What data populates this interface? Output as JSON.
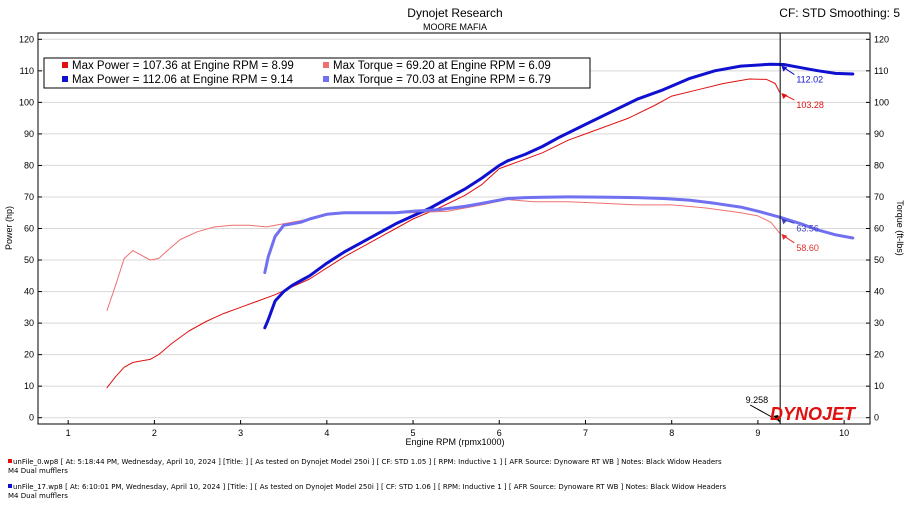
{
  "header": {
    "title": "Dynojet Research",
    "subtitle": "MOORE MAFIA",
    "correction": "CF: STD Smoothing: 5"
  },
  "logo": {
    "text": "DYNOJET"
  },
  "legend": [
    {
      "marker_color": "#e01010",
      "text": "Max Power = 107.36 at Engine RPM = 8.99"
    },
    {
      "marker_color": "#f07070",
      "text": "Max Torque = 69.20 at Engine RPM = 6.09"
    },
    {
      "marker_color": "#1010d0",
      "text": "Max Power = 112.06 at Engine RPM = 9.14"
    },
    {
      "marker_color": "#7070f0",
      "text": "Max Torque = 70.03 at Engine RPM = 6.79"
    }
  ],
  "cursor": {
    "value": 9.258,
    "label": "9.258"
  },
  "footer": [
    {
      "color": "#e01010",
      "line1": "unFile_0.wp8 [ At: 5:18:44 PM, Wednesday, April 10, 2024 ] [Title: ]  [ As tested on Dynojet Model 250i ] [ CF: STD 1.05 ] [ RPM: Inductive 1 ] [ AFR Source: Dynoware RT WB ] Notes: Black Widow Headers",
      "line2": "M4 Dual mufflers"
    },
    {
      "color": "#1010d0",
      "line1": "unFile_17.wp8 [ At: 6:10:01 PM, Wednesday, April 10, 2024 ] [Title: ]  [ As tested on Dynojet Model 250i ] [ CF: STD 1.06 ] [ RPM: Inductive 1 ] [ AFR Source: Dynoware RT WB ] Notes: Black Widow Headers",
      "line2": "M4 Dual mufflers"
    }
  ],
  "chart_data": {
    "type": "line",
    "xlabel": "Engine RPM (rpmx1000)",
    "ylabel": "Power (hp)",
    "ylabel_right": "Torque (ft-lbs)",
    "xlim": [
      0.65,
      10.3
    ],
    "ylim": [
      -2,
      122
    ],
    "x_ticks": [
      1,
      2,
      3,
      4,
      5,
      6,
      7,
      8,
      9,
      10
    ],
    "y_ticks": [
      0,
      10,
      20,
      30,
      40,
      50,
      60,
      70,
      80,
      90,
      100,
      110,
      120
    ],
    "grid": "horizontal",
    "colors": {
      "run1_power": "#e01010",
      "run1_torque": "#f07070",
      "run2_power": "#1010d0",
      "run2_torque": "#7070f0"
    },
    "series": [
      {
        "key": "run1_power",
        "width": 1,
        "x": [
          1.45,
          1.55,
          1.65,
          1.75,
          1.85,
          1.95,
          2.05,
          2.2,
          2.4,
          2.6,
          2.8,
          3.0,
          3.2,
          3.4,
          3.6,
          3.8,
          4.0,
          4.2,
          4.5,
          4.8,
          5.0,
          5.3,
          5.6,
          5.8,
          6.0,
          6.2,
          6.5,
          6.8,
          7.0,
          7.2,
          7.5,
          7.8,
          8.0,
          8.3,
          8.6,
          8.9,
          9.1,
          9.2,
          9.25
        ],
        "y": [
          9.5,
          13,
          16,
          17.5,
          18,
          18.5,
          20,
          23.5,
          27.5,
          30.5,
          33,
          35,
          37,
          39,
          41.5,
          44,
          47.5,
          51,
          55.5,
          60,
          63,
          66.5,
          70.5,
          74,
          79,
          81,
          84,
          88,
          90,
          92,
          95,
          99,
          102,
          104,
          106,
          107.4,
          107.3,
          106,
          103.3
        ]
      },
      {
        "key": "run1_torque",
        "width": 1,
        "x": [
          1.45,
          1.55,
          1.65,
          1.75,
          1.85,
          1.95,
          2.05,
          2.15,
          2.3,
          2.5,
          2.7,
          2.9,
          3.1,
          3.3,
          3.5,
          3.7,
          4.0,
          4.3,
          4.6,
          5.0,
          5.4,
          5.8,
          6.09,
          6.4,
          6.8,
          7.2,
          7.6,
          8.0,
          8.4,
          8.8,
          9.0,
          9.15,
          9.25
        ],
        "y": [
          34,
          42,
          50.5,
          53,
          51.5,
          50,
          50.5,
          53,
          56.5,
          59,
          60.5,
          61,
          61,
          60.5,
          61.5,
          62.5,
          64.5,
          65,
          65,
          65,
          65.5,
          67.5,
          69.2,
          68.5,
          68.5,
          68,
          67.5,
          67.5,
          66.5,
          65,
          64,
          62,
          58.6
        ]
      },
      {
        "key": "run2_power",
        "width": 3,
        "x": [
          3.28,
          3.32,
          3.4,
          3.5,
          3.6,
          3.7,
          3.8,
          4.0,
          4.2,
          4.4,
          4.6,
          4.8,
          5.0,
          5.2,
          5.4,
          5.6,
          5.8,
          6.0,
          6.1,
          6.3,
          6.5,
          6.7,
          7.0,
          7.3,
          7.6,
          7.9,
          8.2,
          8.5,
          8.8,
          9.14,
          9.3,
          9.5,
          9.7,
          9.9,
          10.1
        ],
        "y": [
          28.5,
          31,
          37,
          40,
          42,
          43.5,
          45,
          49,
          52.5,
          55.5,
          58.5,
          61.5,
          64,
          66.5,
          69.5,
          72.5,
          76,
          80,
          81.5,
          83.5,
          86,
          89,
          93,
          97,
          101,
          104,
          107.5,
          110,
          111.5,
          112.06,
          112,
          111,
          110,
          109.2,
          109
        ]
      },
      {
        "key": "run2_torque",
        "width": 3,
        "x": [
          3.28,
          3.32,
          3.4,
          3.5,
          3.6,
          3.7,
          3.8,
          4.0,
          4.2,
          4.5,
          4.8,
          5.0,
          5.3,
          5.6,
          5.8,
          6.0,
          6.1,
          6.3,
          6.5,
          6.79,
          7.0,
          7.3,
          7.6,
          7.9,
          8.2,
          8.5,
          8.8,
          9.0,
          9.26,
          9.5,
          9.7,
          9.9,
          10.1
        ],
        "y": [
          46,
          51,
          57.5,
          61,
          61.5,
          62,
          63,
          64.5,
          65,
          65,
          65,
          65.5,
          66,
          67,
          68,
          69,
          69.5,
          69.8,
          69.9,
          70.03,
          70,
          69.9,
          69.8,
          69.5,
          69,
          68,
          66.8,
          65.5,
          63.56,
          61.5,
          59.5,
          58,
          57
        ]
      }
    ],
    "annotations": [
      {
        "text": "112.02",
        "x": 9.26,
        "y": 112,
        "color": "#1010d0"
      },
      {
        "text": "103.28",
        "x": 9.26,
        "y": 103.3,
        "color": "#e01010"
      },
      {
        "text": "63.56",
        "x": 9.26,
        "y": 63.56,
        "color": "#4040c0"
      },
      {
        "text": "58.60",
        "x": 9.26,
        "y": 58.6,
        "color": "#e03030"
      }
    ]
  }
}
